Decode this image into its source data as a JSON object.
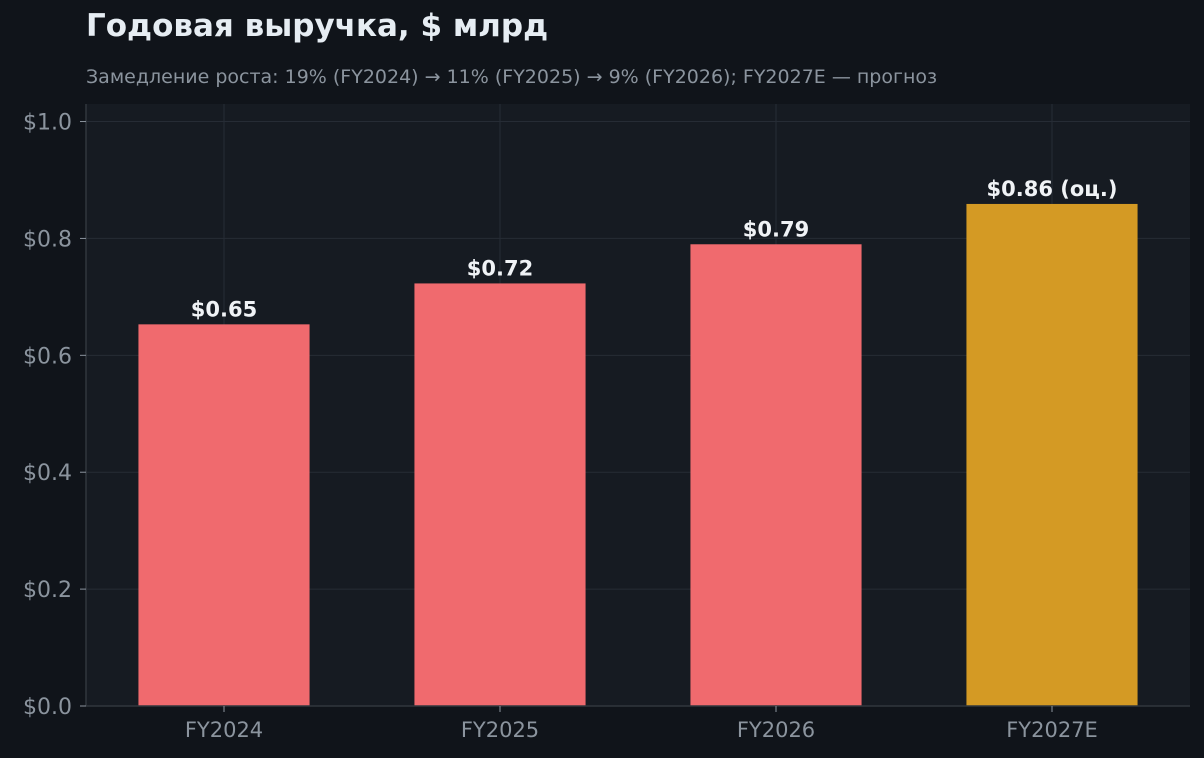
{
  "chart_data": {
    "type": "bar",
    "title": "Годовая выручка, $ млрд",
    "subtitle": "Замедление роста: 19% (FY2024) → 11% (FY2025) → 9% (FY2026); FY2027E — прогноз",
    "categories": [
      "FY2024",
      "FY2025",
      "FY2026",
      "FY2027E"
    ],
    "values": [
      0.653,
      0.723,
      0.79,
      0.859
    ],
    "data_labels": [
      "$0.65",
      "$0.72",
      "$0.79",
      "$0.86 (оц.)"
    ],
    "forecast": [
      false,
      false,
      false,
      true
    ],
    "ylim": [
      0,
      1.03
    ],
    "yticks": [
      0.0,
      0.2,
      0.4,
      0.6,
      0.8,
      1.0
    ],
    "ytick_labels": [
      "$0.0",
      "$0.2",
      "$0.4",
      "$0.6",
      "$0.8",
      "$1.0"
    ],
    "xlabel": "",
    "ylabel": "",
    "grid": true,
    "colors": {
      "actual": "#f06a6e",
      "forecast": "#d49a24",
      "plot_bg": "#161b22",
      "page_bg": "#10141a",
      "grid": "#262c35",
      "tick_text": "#8b949e",
      "label_text": "#f0f3f6"
    }
  }
}
